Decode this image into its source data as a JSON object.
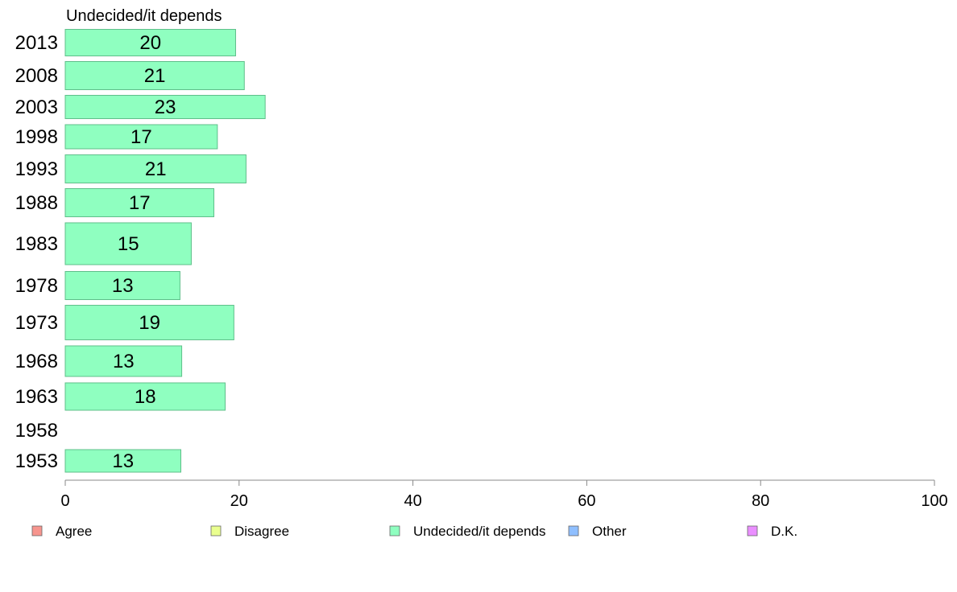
{
  "chart_data": {
    "type": "bar",
    "orientation": "horizontal",
    "title": "Undecided/it depends",
    "categories": [
      "2013",
      "2008",
      "2003",
      "1998",
      "1993",
      "1988",
      "1983",
      "1978",
      "1973",
      "1968",
      "1963",
      "1958",
      "1953"
    ],
    "series": [
      {
        "name": "Undecided/it depends",
        "color": "#8fffc0",
        "values": [
          19.6,
          20.6,
          23.0,
          17.5,
          20.8,
          17.1,
          14.5,
          13.2,
          19.4,
          13.4,
          18.4,
          null,
          13.3
        ],
        "labels": [
          "20",
          "21",
          "23",
          "17",
          "21",
          "17",
          "15",
          "13",
          "19",
          "13",
          "18",
          "",
          "13"
        ]
      }
    ],
    "xlim": [
      0,
      100
    ],
    "xticks": [
      "0",
      "20",
      "40",
      "60",
      "80",
      "100"
    ],
    "grid": false,
    "legend": {
      "placement": "bottom",
      "entries": [
        {
          "label": "Agree",
          "color": "#f7958e"
        },
        {
          "label": "Disagree",
          "color": "#eaff8f"
        },
        {
          "label": "Undecided/it depends",
          "color": "#8fffc0"
        },
        {
          "label": "Other",
          "color": "#8fbfff"
        },
        {
          "label": "D.K.",
          "color": "#ea8fff"
        }
      ]
    },
    "colors": {
      "bar_stroke": "#5fbf8a",
      "axis": "#888888",
      "text": "#000000"
    }
  }
}
